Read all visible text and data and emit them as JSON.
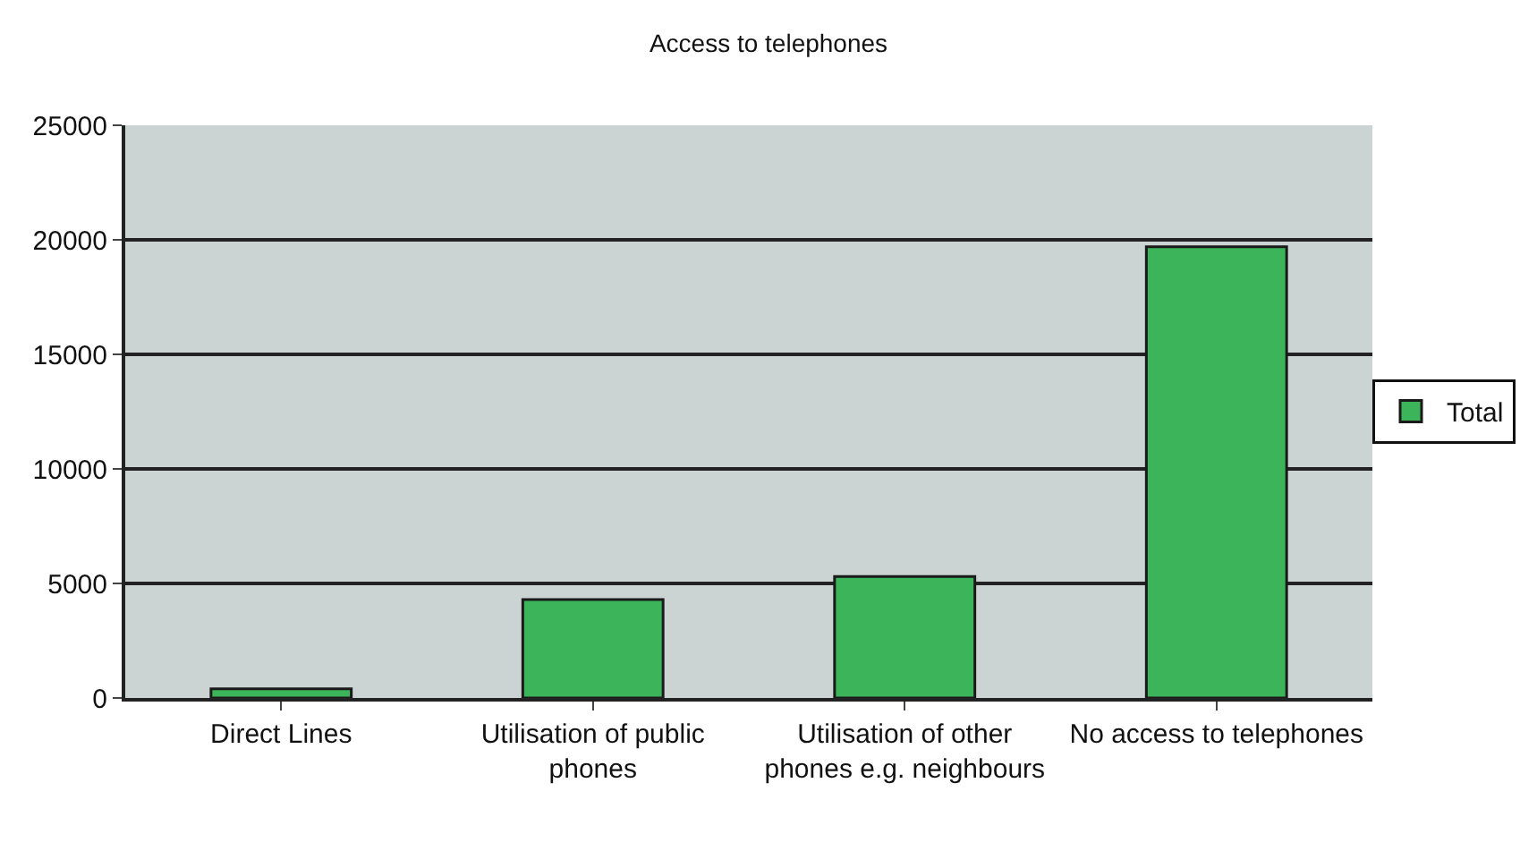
{
  "chart_data": {
    "type": "bar",
    "title": "Access to telephones",
    "categories": [
      "Direct Lines",
      "Utilisation of public phones",
      "Utilisation of other phones e.g. neighbours",
      "No access to telephones"
    ],
    "series": [
      {
        "name": "Total",
        "color": "#3cb55a",
        "values": [
          400,
          4300,
          5300,
          19700
        ]
      }
    ],
    "ylim": [
      0,
      25000
    ],
    "yticks": [
      0,
      5000,
      10000,
      15000,
      20000,
      25000
    ],
    "grid": "y",
    "legend": "right"
  }
}
